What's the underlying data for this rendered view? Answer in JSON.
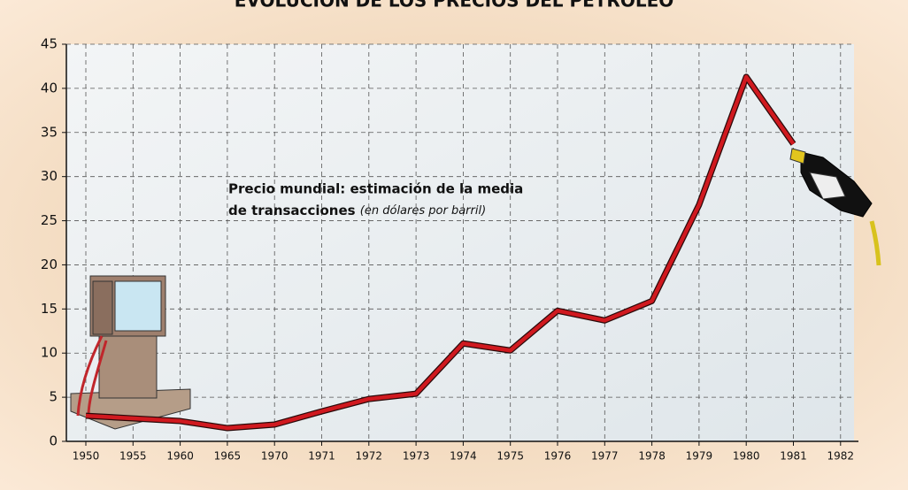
{
  "chart_data": {
    "type": "line",
    "title": "EVOLUCIÓN DE LOS PRECIOS DEL PETRÓLEO",
    "annotation": {
      "line1": "Precio mundial: estimación de la media",
      "line2": "de transacciones",
      "note": "(en dólares por barril)"
    },
    "categories": [
      "1950",
      "1955",
      "1960",
      "1965",
      "1970",
      "1971",
      "1972",
      "1973",
      "1974",
      "1975",
      "1976",
      "1977",
      "1978",
      "1979",
      "1980",
      "1981",
      "1982"
    ],
    "series": [
      {
        "color": "#d0191f",
        "values": [
          2.9,
          2.6,
          2.3,
          1.5,
          1.9,
          3.4,
          4.8,
          5.4,
          11.1,
          10.3,
          14.8,
          13.7,
          15.9,
          26.8,
          41.3,
          33.7,
          null
        ]
      }
    ],
    "ylim": [
      0,
      45
    ],
    "yticks": [
      0,
      5,
      10,
      15,
      20,
      25,
      30,
      35,
      40,
      45
    ],
    "grid": true
  }
}
